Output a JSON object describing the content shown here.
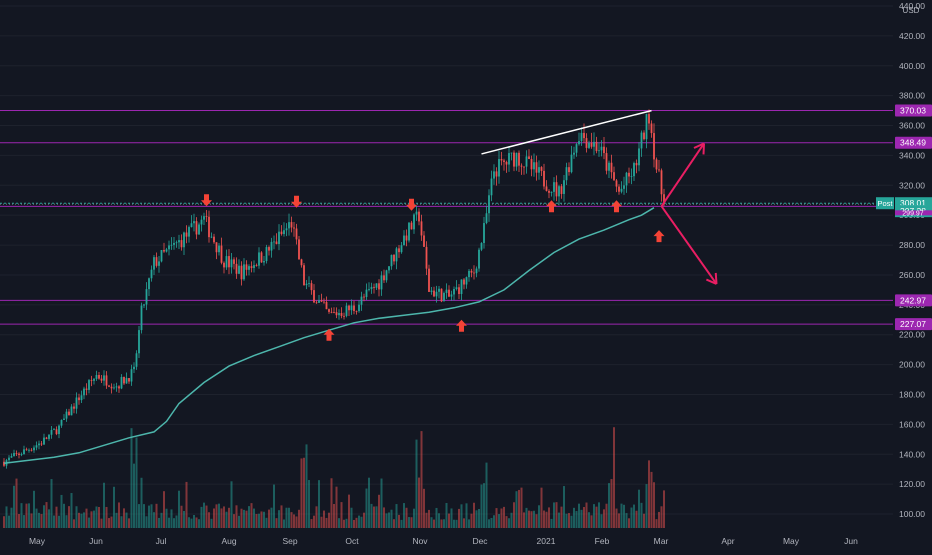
{
  "chart_data": {
    "type": "candlestick",
    "symbol_currency": "USD",
    "y_axis_ticks": [
      100,
      120,
      140,
      160,
      180,
      200,
      220,
      240,
      260,
      280,
      300,
      320,
      340,
      360,
      380,
      400,
      420,
      440
    ],
    "y_axis_tick_labels": [
      "100.00",
      "120.00",
      "140.00",
      "160.00",
      "180.00",
      "200.00",
      "220.00",
      "240.00",
      "260.00",
      "280.00",
      "300.00",
      "320.00",
      "340.00",
      "360.00",
      "380.00",
      "400.00",
      "420.00",
      "440.00"
    ],
    "ylim": [
      94,
      442
    ],
    "x_axis_labels": [
      "May",
      "Jun",
      "Jul",
      "Aug",
      "Sep",
      "Oct",
      "Nov",
      "Dec",
      "2021",
      "Feb",
      "Mar",
      "Apr",
      "May",
      "Jun"
    ],
    "horizontal_levels": [
      {
        "value": 370.03,
        "label": "370.03",
        "color": "#9c27b0"
      },
      {
        "value": 348.49,
        "label": "348.49",
        "color": "#9c27b0"
      },
      {
        "value": 305.93,
        "label": "305.93",
        "color": "#9c27b0"
      },
      {
        "value": 242.97,
        "label": "242.97",
        "color": "#9c27b0"
      },
      {
        "value": 227.07,
        "label": "227.07",
        "color": "#9c27b0"
      }
    ],
    "post_price": {
      "label": "Post",
      "value": 308.01,
      "value_label": "308.01",
      "color": "#26a69a"
    },
    "last_price": {
      "value": 307.38,
      "value_label": "307.38",
      "color": "#26a69a"
    },
    "hidden_level_label": "299.97",
    "moving_average": [
      {
        "t": 0,
        "v": 134
      },
      {
        "t": 10,
        "v": 136
      },
      {
        "t": 20,
        "v": 138
      },
      {
        "t": 30,
        "v": 141
      },
      {
        "t": 40,
        "v": 146
      },
      {
        "t": 50,
        "v": 151
      },
      {
        "t": 60,
        "v": 155
      },
      {
        "t": 65,
        "v": 162
      },
      {
        "t": 70,
        "v": 174
      },
      {
        "t": 80,
        "v": 188
      },
      {
        "t": 90,
        "v": 199
      },
      {
        "t": 100,
        "v": 206
      },
      {
        "t": 110,
        "v": 212
      },
      {
        "t": 120,
        "v": 218
      },
      {
        "t": 130,
        "v": 223
      },
      {
        "t": 140,
        "v": 228
      },
      {
        "t": 150,
        "v": 231
      },
      {
        "t": 160,
        "v": 233
      },
      {
        "t": 170,
        "v": 235
      },
      {
        "t": 180,
        "v": 238
      },
      {
        "t": 190,
        "v": 242
      },
      {
        "t": 200,
        "v": 250
      },
      {
        "t": 210,
        "v": 263
      },
      {
        "t": 220,
        "v": 275
      },
      {
        "t": 230,
        "v": 284
      },
      {
        "t": 240,
        "v": 290
      },
      {
        "t": 250,
        "v": 297
      },
      {
        "t": 255,
        "v": 300
      },
      {
        "t": 260,
        "v": 305
      }
    ],
    "anchors": [
      {
        "t": 0,
        "v": 135
      },
      {
        "t": 8,
        "v": 142
      },
      {
        "t": 15,
        "v": 148
      },
      {
        "t": 22,
        "v": 158
      },
      {
        "t": 30,
        "v": 178
      },
      {
        "t": 37,
        "v": 193
      },
      {
        "t": 45,
        "v": 186
      },
      {
        "t": 52,
        "v": 195
      },
      {
        "t": 55,
        "v": 235
      },
      {
        "t": 60,
        "v": 268
      },
      {
        "t": 70,
        "v": 282
      },
      {
        "t": 80,
        "v": 297
      },
      {
        "t": 88,
        "v": 270
      },
      {
        "t": 95,
        "v": 262
      },
      {
        "t": 105,
        "v": 275
      },
      {
        "t": 115,
        "v": 295
      },
      {
        "t": 120,
        "v": 255
      },
      {
        "t": 130,
        "v": 233
      },
      {
        "t": 140,
        "v": 238
      },
      {
        "t": 150,
        "v": 255
      },
      {
        "t": 160,
        "v": 285
      },
      {
        "t": 166,
        "v": 300
      },
      {
        "t": 170,
        "v": 250
      },
      {
        "t": 178,
        "v": 245
      },
      {
        "t": 188,
        "v": 262
      },
      {
        "t": 192,
        "v": 290
      },
      {
        "t": 196,
        "v": 330
      },
      {
        "t": 205,
        "v": 340
      },
      {
        "t": 215,
        "v": 325
      },
      {
        "t": 222,
        "v": 315
      },
      {
        "t": 230,
        "v": 355
      },
      {
        "t": 238,
        "v": 345
      },
      {
        "t": 246,
        "v": 315
      },
      {
        "t": 252,
        "v": 330
      },
      {
        "t": 258,
        "v": 368
      },
      {
        "t": 261,
        "v": 332
      },
      {
        "t": 264,
        "v": 307
      }
    ],
    "volume_spikes": [
      52,
      120,
      166,
      192,
      243,
      258
    ],
    "trendline": {
      "from": {
        "t": 191,
        "v": 341
      },
      "to": {
        "t": 259,
        "v": 370
      },
      "color": "#ffffff"
    },
    "down_arrows": [
      {
        "t": 81,
        "v": 308
      },
      {
        "t": 117,
        "v": 307
      },
      {
        "t": 163,
        "v": 305
      }
    ],
    "up_arrows": [
      {
        "t": 130,
        "v": 222
      },
      {
        "t": 183,
        "v": 228
      },
      {
        "t": 219,
        "v": 308
      },
      {
        "t": 245,
        "v": 308
      },
      {
        "t": 262,
        "v": 288
      }
    ],
    "scenario_arrows": [
      {
        "from": {
          "t": 263,
          "v": 306
        },
        "to": {
          "t": 280,
          "v": 348
        }
      },
      {
        "from": {
          "t": 263,
          "v": 306
        },
        "to": {
          "t": 285,
          "v": 254
        }
      }
    ]
  }
}
